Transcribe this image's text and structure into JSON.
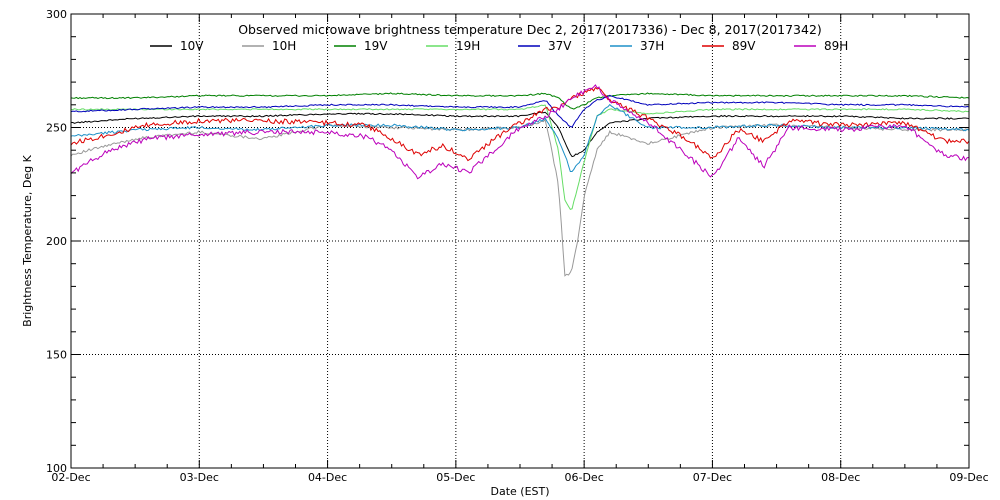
{
  "chart_data": {
    "type": "line",
    "title": "Observed microwave brightness temperature Dec  2, 2017(2017336) - Dec  8, 2017(2017342)",
    "xlabel": "Date (EST)",
    "ylabel": "Brightness Temperature, Deg K",
    "ylim": [
      100,
      300
    ],
    "xlim": [
      0,
      7
    ],
    "x_tick_labels": [
      "02-Dec",
      "03-Dec",
      "04-Dec",
      "05-Dec",
      "06-Dec",
      "07-Dec",
      "08-Dec",
      "09-Dec"
    ],
    "x_tick_values": [
      0,
      1,
      2,
      3,
      4,
      5,
      6,
      7
    ],
    "y_ticks": [
      100,
      150,
      200,
      250,
      300
    ],
    "grid": true,
    "legend": "top",
    "x_unit": "days since 02-Dec",
    "series": [
      {
        "name": "10V",
        "color": "#000000",
        "x": [
          0,
          0.5,
          1,
          1.5,
          2,
          2.5,
          3,
          3.5,
          3.7,
          3.8,
          3.9,
          4.0,
          4.1,
          4.2,
          4.5,
          5,
          5.5,
          6,
          6.5,
          7
        ],
        "values": [
          252,
          254,
          255,
          255,
          256,
          256,
          255,
          255,
          257,
          250,
          237,
          240,
          248,
          252,
          254,
          255,
          255,
          255,
          254,
          254
        ]
      },
      {
        "name": "10H",
        "color": "#999999",
        "x": [
          0,
          0.5,
          1,
          1.5,
          2,
          2.5,
          3,
          3.5,
          3.7,
          3.8,
          3.85,
          3.9,
          3.95,
          4.0,
          4.1,
          4.2,
          4.5,
          5,
          5.5,
          6,
          6.5,
          7
        ],
        "values": [
          238,
          245,
          248,
          245,
          251,
          250,
          249,
          250,
          253,
          225,
          185,
          186,
          200,
          220,
          240,
          248,
          243,
          250,
          251,
          250,
          249,
          249
        ]
      },
      {
        "name": "19V",
        "color": "#008000",
        "x": [
          0,
          0.5,
          1,
          1.5,
          2,
          2.5,
          3,
          3.5,
          3.7,
          3.8,
          3.9,
          4.0,
          4.1,
          4.2,
          4.5,
          5,
          5.5,
          6,
          6.5,
          7
        ],
        "values": [
          263,
          263,
          264,
          264,
          264,
          265,
          264,
          264,
          265,
          263,
          258,
          260,
          263,
          264,
          265,
          264,
          264,
          264,
          264,
          263
        ]
      },
      {
        "name": "19H",
        "color": "#66dd66",
        "x": [
          0,
          0.5,
          1,
          1.5,
          2,
          2.5,
          3,
          3.5,
          3.7,
          3.8,
          3.85,
          3.9,
          4.0,
          4.1,
          4.2,
          4.5,
          5,
          5.5,
          6,
          6.5,
          7
        ],
        "values": [
          258,
          258,
          258,
          258,
          258,
          258,
          258,
          258,
          260,
          240,
          218,
          213,
          235,
          255,
          258,
          256,
          258,
          258,
          258,
          258,
          257
        ]
      },
      {
        "name": "37V",
        "color": "#0000bb",
        "x": [
          0,
          0.5,
          1,
          1.5,
          2,
          2.5,
          3,
          3.5,
          3.7,
          3.8,
          3.9,
          4.0,
          4.1,
          4.2,
          4.5,
          5,
          5.5,
          6,
          6.5,
          7
        ],
        "values": [
          257,
          258,
          259,
          259,
          260,
          260,
          259,
          259,
          262,
          255,
          250,
          258,
          262,
          264,
          260,
          261,
          261,
          260,
          260,
          259
        ]
      },
      {
        "name": "37H",
        "color": "#1e90c8",
        "x": [
          0,
          0.5,
          1,
          1.5,
          2,
          2.5,
          3,
          3.5,
          3.7,
          3.8,
          3.9,
          4.0,
          4.1,
          4.2,
          4.5,
          5,
          5.5,
          6,
          6.5,
          7
        ],
        "values": [
          246,
          249,
          250,
          249,
          251,
          251,
          249,
          250,
          254,
          245,
          230,
          238,
          255,
          260,
          250,
          250,
          251,
          250,
          250,
          249
        ]
      },
      {
        "name": "89V",
        "color": "#dd0000",
        "x": [
          0,
          0.3,
          0.6,
          1,
          1.5,
          2,
          2.3,
          2.5,
          2.7,
          2.9,
          3.1,
          3.3,
          3.5,
          3.7,
          3.8,
          3.9,
          4.0,
          4.1,
          4.2,
          4.5,
          4.8,
          5.0,
          5.2,
          5.4,
          5.6,
          6.0,
          6.5,
          6.8,
          7
        ],
        "values": [
          243,
          247,
          251,
          253,
          253,
          252,
          251,
          245,
          238,
          242,
          236,
          245,
          252,
          258,
          258,
          263,
          265,
          268,
          262,
          254,
          245,
          236,
          249,
          244,
          253,
          251,
          252,
          244,
          244
        ]
      },
      {
        "name": "89H",
        "color": "#bb00bb",
        "x": [
          0,
          0.3,
          0.6,
          1,
          1.5,
          2,
          2.3,
          2.5,
          2.7,
          2.9,
          3.1,
          3.3,
          3.5,
          3.7,
          3.8,
          3.9,
          4.0,
          4.1,
          4.2,
          4.5,
          4.8,
          5.0,
          5.2,
          5.4,
          5.6,
          6.0,
          6.5,
          6.8,
          7
        ],
        "values": [
          230,
          240,
          245,
          247,
          248,
          248,
          246,
          240,
          228,
          234,
          230,
          240,
          250,
          255,
          258,
          263,
          266,
          268,
          262,
          252,
          238,
          228,
          245,
          233,
          250,
          249,
          251,
          238,
          236
        ]
      }
    ]
  }
}
